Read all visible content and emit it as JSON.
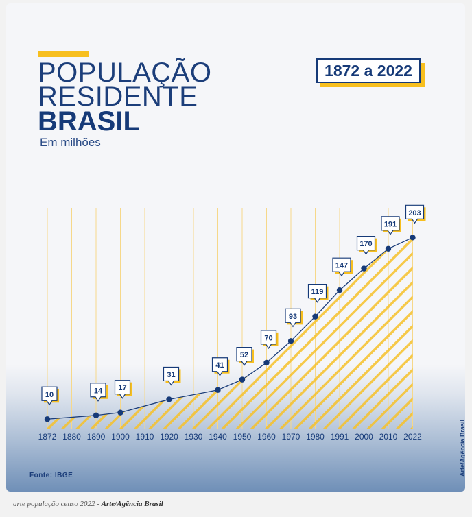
{
  "header": {
    "title_line1": "POPULAÇÃO",
    "title_line2": "RESIDENTE",
    "title_line3": "BRASIL",
    "subtitle": "Em milhões",
    "period": "1872 a 2022"
  },
  "footer": {
    "source": "Fonte: IBGE",
    "credit": "Arte/Agência Brasil"
  },
  "caption": {
    "text": "arte população censo 2022 - ",
    "author": "Arte/Agência Brasil"
  },
  "colors": {
    "navy": "#163a78",
    "yellow": "#f7bf1f",
    "grid": "#f6d88a"
  },
  "chart_data": {
    "type": "line",
    "title": "POPULAÇÃO RESIDENTE BRASIL",
    "subtitle": "Em milhões",
    "x_ticks": [
      "1872",
      "1880",
      "1890",
      "1900",
      "1910",
      "1920",
      "1930",
      "1940",
      "1950",
      "1960",
      "1970",
      "1980",
      "1991",
      "2000",
      "2010",
      "2022"
    ],
    "points": [
      {
        "year": "1872",
        "value": 10,
        "label": "10"
      },
      {
        "year": "1890",
        "value": 14,
        "label": "14"
      },
      {
        "year": "1900",
        "value": 17,
        "label": "17"
      },
      {
        "year": "1920",
        "value": 31,
        "label": "31"
      },
      {
        "year": "1940",
        "value": 41,
        "label": "41"
      },
      {
        "year": "1950",
        "value": 52,
        "label": "52"
      },
      {
        "year": "1960",
        "value": 70,
        "label": "70"
      },
      {
        "year": "1970",
        "value": 93,
        "label": "93"
      },
      {
        "year": "1980",
        "value": 119,
        "label": "119"
      },
      {
        "year": "1991",
        "value": 147,
        "label": "147"
      },
      {
        "year": "2000",
        "value": 170,
        "label": "170"
      },
      {
        "year": "2010",
        "value": 191,
        "label": "191"
      },
      {
        "year": "2022",
        "value": 203,
        "label": "203"
      }
    ],
    "ylim": [
      0,
      220
    ],
    "grid": "vertical"
  }
}
